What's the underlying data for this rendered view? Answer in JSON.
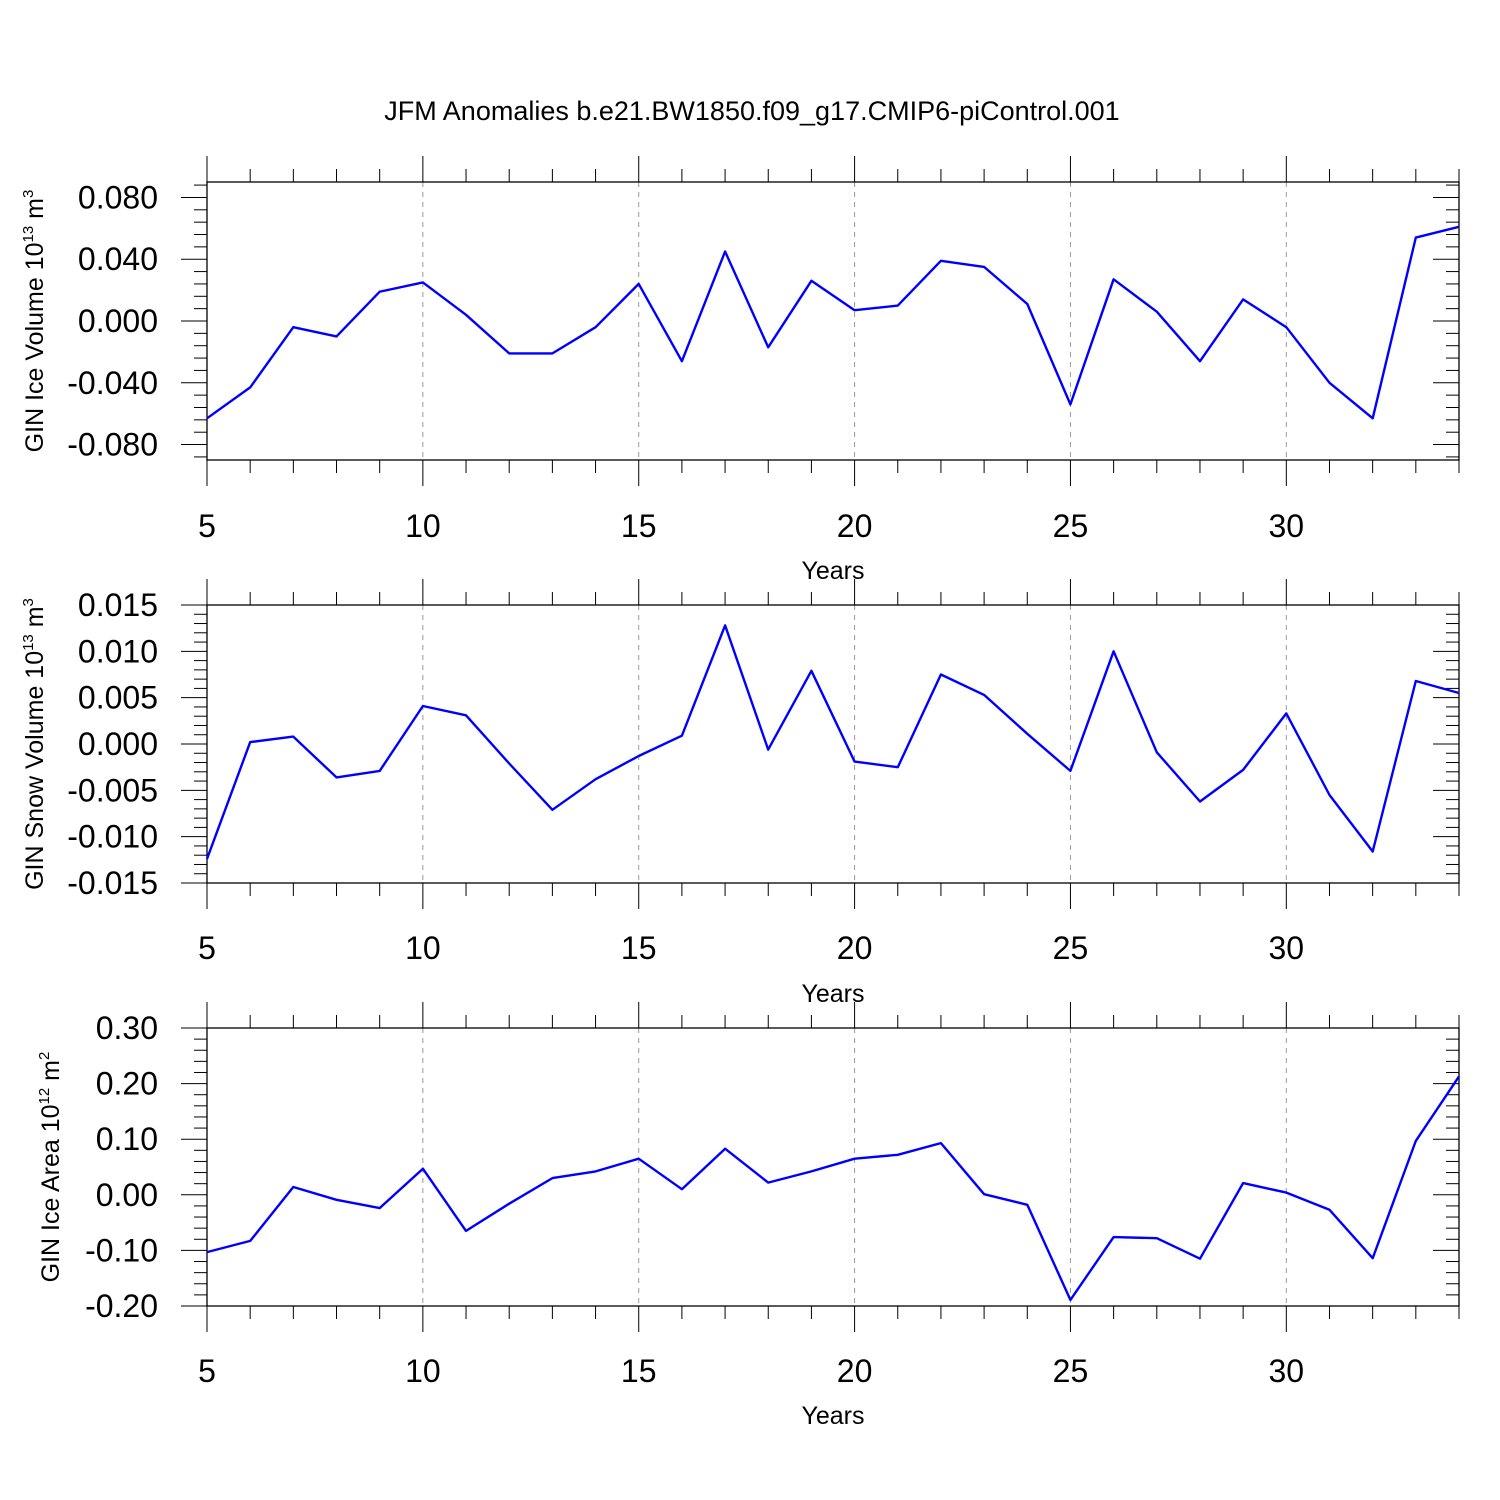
{
  "title": "JFM Anomalies b.e21.BW1850.f09_g17.CMIP6-piControl.001",
  "line_color": "#0000ff",
  "chart_data": [
    {
      "type": "line",
      "ylabel_main": "GIN Ice Volume 10",
      "ylabel_exp": "13",
      "ylabel_unit": " m",
      "ylabel_unit_exp": "3",
      "xlabel": "Years",
      "xlim": [
        5,
        34
      ],
      "ylim": [
        -0.09,
        0.09
      ],
      "xticks": [
        5,
        10,
        15,
        20,
        25,
        30
      ],
      "xtick_labels": [
        "5",
        "10",
        "15",
        "20",
        "25",
        "30"
      ],
      "yticks": [
        -0.08,
        -0.04,
        0.0,
        0.04,
        0.08
      ],
      "ytick_labels": [
        "-0.080",
        "-0.040",
        "0.000",
        "0.040",
        "0.080"
      ],
      "x": [
        5,
        6,
        7,
        8,
        9,
        10,
        11,
        12,
        13,
        14,
        15,
        16,
        17,
        18,
        19,
        20,
        21,
        22,
        23,
        24,
        25,
        26,
        27,
        28,
        29,
        30,
        31,
        32,
        33,
        34
      ],
      "values": [
        -0.063,
        -0.043,
        -0.004,
        -0.01,
        0.019,
        0.025,
        0.004,
        -0.021,
        -0.021,
        -0.004,
        0.024,
        -0.026,
        0.045,
        -0.017,
        0.026,
        0.007,
        0.01,
        0.039,
        0.035,
        0.011,
        -0.054,
        0.027,
        0.006,
        -0.026,
        0.014,
        -0.004,
        -0.04,
        -0.063,
        0.054,
        0.061
      ]
    },
    {
      "type": "line",
      "ylabel_main": "GIN Snow Volume 10",
      "ylabel_exp": "13",
      "ylabel_unit": " m",
      "ylabel_unit_exp": "3",
      "xlabel": "Years",
      "xlim": [
        5,
        34
      ],
      "ylim": [
        -0.015,
        0.015
      ],
      "xticks": [
        5,
        10,
        15,
        20,
        25,
        30
      ],
      "xtick_labels": [
        "5",
        "10",
        "15",
        "20",
        "25",
        "30"
      ],
      "yticks": [
        -0.015,
        -0.01,
        -0.005,
        0.0,
        0.005,
        0.01,
        0.015
      ],
      "ytick_labels": [
        "-0.015",
        "-0.010",
        "-0.005",
        "0.000",
        "0.005",
        "0.010",
        "0.015"
      ],
      "x": [
        5,
        6,
        7,
        8,
        9,
        10,
        11,
        12,
        13,
        14,
        15,
        16,
        17,
        18,
        19,
        20,
        21,
        22,
        23,
        24,
        25,
        26,
        27,
        28,
        29,
        30,
        31,
        32,
        33,
        34
      ],
      "values": [
        -0.0124,
        0.0002,
        0.0008,
        -0.0036,
        -0.0029,
        0.0041,
        0.0031,
        -0.0021,
        -0.0071,
        -0.0038,
        -0.0013,
        0.0009,
        0.0128,
        -0.0006,
        0.0079,
        -0.0019,
        -0.0025,
        0.0075,
        0.0053,
        0.0011,
        -0.0029,
        0.01,
        -0.0009,
        -0.0062,
        -0.0028,
        0.0033,
        -0.0055,
        -0.0116,
        0.0068,
        0.0055
      ]
    },
    {
      "type": "line",
      "ylabel_main": "GIN Ice Area 10",
      "ylabel_exp": "12",
      "ylabel_unit": " m",
      "ylabel_unit_exp": "2",
      "xlabel": "Years",
      "xlim": [
        5,
        34
      ],
      "ylim": [
        -0.2,
        0.3
      ],
      "xticks": [
        5,
        10,
        15,
        20,
        25,
        30
      ],
      "xtick_labels": [
        "5",
        "10",
        "15",
        "20",
        "25",
        "30"
      ],
      "yticks": [
        -0.2,
        -0.1,
        0.0,
        0.1,
        0.2,
        0.3
      ],
      "ytick_labels": [
        "-0.20",
        "-0.10",
        "0.00",
        "0.10",
        "0.20",
        "0.30"
      ],
      "x": [
        5,
        6,
        7,
        8,
        9,
        10,
        11,
        12,
        13,
        14,
        15,
        16,
        17,
        18,
        19,
        20,
        21,
        22,
        23,
        24,
        25,
        26,
        27,
        28,
        29,
        30,
        31,
        32,
        33,
        34
      ],
      "values": [
        -0.103,
        -0.083,
        0.014,
        -0.009,
        -0.024,
        0.047,
        -0.065,
        -0.016,
        0.03,
        0.042,
        0.065,
        0.01,
        0.083,
        0.022,
        0.042,
        0.065,
        0.072,
        0.093,
        0.001,
        -0.018,
        -0.189,
        -0.076,
        -0.078,
        -0.115,
        0.021,
        0.004,
        -0.027,
        -0.114,
        0.097,
        0.213
      ]
    }
  ]
}
